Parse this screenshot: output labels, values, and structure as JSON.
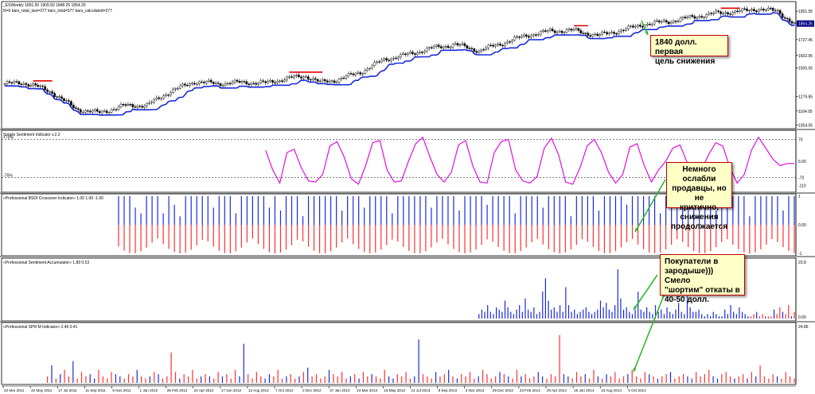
{
  "chart_data": [
    {
      "type": "candlestick",
      "title": "_ESWeekly  1891.50 1905.50 1848.25 1854.25",
      "subtitle": "N=0 bars_total_last=377 bars_total=377 bars_calculated=377",
      "y_ticks": [
        "1951.55",
        "1854.25",
        "1727.45",
        "1602.95",
        "1505.05",
        "1279.85",
        "1164.05",
        "1054.05"
      ],
      "y_min": 1050,
      "y_max": 1990,
      "price_label": "1854.25",
      "colors": {
        "line": "#1a2adc",
        "line_resist": "#e00000",
        "bull": "#ffffff",
        "bear": "#000000",
        "accent_label": "#000080"
      },
      "anchors": [
        [
          0,
          1380
        ],
        [
          8,
          1385
        ],
        [
          12,
          1370
        ],
        [
          16,
          1340
        ],
        [
          20,
          1310
        ],
        [
          24,
          1260
        ],
        [
          30,
          1180
        ],
        [
          40,
          1150
        ],
        [
          50,
          1205
        ],
        [
          60,
          1210
        ],
        [
          70,
          1320
        ],
        [
          80,
          1395
        ],
        [
          90,
          1380
        ],
        [
          100,
          1390
        ],
        [
          110,
          1385
        ],
        [
          120,
          1425
        ],
        [
          127,
          1440
        ],
        [
          133,
          1390
        ],
        [
          140,
          1410
        ],
        [
          150,
          1470
        ],
        [
          160,
          1570
        ],
        [
          170,
          1610
        ],
        [
          180,
          1660
        ],
        [
          190,
          1690
        ],
        [
          200,
          1640
        ],
        [
          210,
          1700
        ],
        [
          220,
          1760
        ],
        [
          230,
          1795
        ],
        [
          240,
          1800
        ],
        [
          250,
          1760
        ],
        [
          260,
          1800
        ],
        [
          270,
          1850
        ],
        [
          280,
          1870
        ],
        [
          290,
          1905
        ],
        [
          300,
          1935
        ],
        [
          310,
          1950
        ],
        [
          318,
          1970
        ],
        [
          326,
          1950
        ],
        [
          333,
          1850
        ]
      ],
      "resist_bars": [
        [
          12,
          20
        ],
        [
          120,
          134
        ],
        [
          240,
          246
        ],
        [
          302,
          310
        ]
      ],
      "points": 334
    },
    {
      "type": "line",
      "title": "Simple Sentiment Indicator v.2.2",
      "y_ticks": [
        "70",
        "6.00",
        "-70",
        "-110"
      ],
      "level_labels": [
        "+75%",
        "-75%"
      ],
      "colors": {
        "line": "#e010e0",
        "level": "#000000"
      },
      "x_start": 110,
      "x_end": 333,
      "series": [
        {
          "values": [
            50,
            -40,
            -100,
            40,
            55,
            -30,
            -90,
            -95,
            -60,
            70,
            90,
            20,
            -80,
            -105,
            -20,
            85,
            95,
            -40,
            -95,
            -90,
            0,
            80,
            110,
            20,
            -60,
            -95,
            -50,
            75,
            95,
            -20,
            -95,
            -100,
            40,
            90,
            100,
            -40,
            -90,
            -100,
            -70,
            60,
            105,
            30,
            -95,
            -105,
            -30,
            70,
            100,
            40,
            -50,
            -100,
            -60,
            65,
            80,
            -20,
            -95,
            -40,
            0,
            60,
            75,
            -5,
            -100,
            -40,
            30,
            85,
            70,
            -30,
            -100,
            -60,
            50,
            110,
            60,
            10,
            -20,
            -10,
            -10
          ]
        }
      ]
    },
    {
      "type": "bar",
      "title": "«Professional BSDI Crossover Indicator» 1.00 1.00 -1.00",
      "y_ticks": [
        "1",
        "0.00",
        "-1"
      ],
      "colors": {
        "pos": "#1a2adc",
        "neg": "#ff3030"
      },
      "x_start": 0,
      "x_end": 333,
      "series": [
        {
          "values": [
            1,
            1,
            1,
            0.6,
            0.4,
            1,
            1,
            1,
            0.4,
            1,
            0.7,
            0.3,
            1,
            1,
            1,
            1,
            1,
            0.6,
            1,
            1,
            1,
            0.4,
            1,
            1,
            1,
            1,
            1,
            0.6,
            1,
            0.5,
            1,
            1,
            1,
            0.3,
            1,
            1,
            1,
            1,
            1,
            1,
            0.5,
            1,
            1,
            1,
            0.6,
            1,
            1,
            1,
            1,
            0.4,
            1,
            1,
            1,
            1,
            1,
            1,
            0.6,
            1,
            1,
            1,
            1,
            0.5,
            1,
            1,
            1,
            1,
            0.7,
            1,
            1,
            1,
            1,
            0.4,
            1,
            1,
            1,
            1,
            0.6,
            1,
            1,
            1,
            1,
            0.3,
            1,
            1,
            1,
            1,
            0.5,
            1,
            1,
            1,
            1,
            0.7,
            1,
            1,
            1,
            1,
            1,
            0.4,
            1,
            1,
            1,
            1,
            1,
            0.6,
            1,
            1,
            1,
            0.5,
            1,
            1,
            1,
            1,
            1,
            0.3,
            1,
            1,
            1,
            1,
            1,
            0.5,
            1,
            1
          ]
        }
      ]
    },
    {
      "type": "bar",
      "title": "«Professional Sentiment Accumulator» 1.89 0.53",
      "y_ticks": [
        "23.8",
        "0.00"
      ],
      "colors": {
        "pos": "#1a2adc",
        "neg": "#ff3030"
      },
      "x_start": 200,
      "x_end": 333,
      "series": [
        {
          "values": [
            2,
            4,
            3,
            6,
            3,
            2,
            5,
            4,
            3,
            8,
            5,
            3,
            2,
            4,
            6,
            3,
            9,
            4,
            3,
            5,
            2,
            3,
            12,
            18,
            8,
            4,
            5,
            3,
            6,
            3,
            14,
            6,
            3,
            4,
            2,
            3,
            4,
            5,
            3,
            2,
            3,
            4,
            8,
            5,
            7,
            4,
            3,
            6,
            22,
            9,
            4,
            5,
            3,
            2,
            4,
            12,
            4,
            3,
            5,
            3,
            2,
            6,
            3,
            4,
            2,
            5,
            3,
            2,
            4,
            7,
            3,
            2,
            10,
            5,
            3,
            3,
            4,
            2,
            1,
            2,
            1,
            3,
            2,
            1,
            1,
            4,
            2,
            6,
            3,
            2,
            5,
            3,
            2,
            1,
            1,
            2,
            3,
            1,
            2,
            1,
            1,
            1,
            4,
            2,
            5,
            3,
            2,
            6,
            1,
            3
          ]
        }
      ]
    },
    {
      "type": "bar",
      "title": "«Professional SPR-M Indicator» 2.46 0.41",
      "y_ticks": [
        "24.86"
      ],
      "colors": {
        "pos": "#1a2adc",
        "neg": "#ff3030"
      },
      "x_start": 18,
      "x_end": 333,
      "x_ticks": [
        "22 Mar 2011",
        "22 May 2011",
        "17 Jul 2011",
        "11 Sep 2011",
        "6 Nov 2011",
        "1 Jan 2012",
        "26 Feb 2012",
        "22 Apr 2012",
        "17 Jun 2012",
        "12 Aug 2012",
        "7 Oct 2012",
        "2 Dec 2012",
        "27 Jan 2013",
        "24 Mar 2013",
        "19 May 2013",
        "14 Jul 2013",
        "8 Sep 2013",
        "3 Nov 2013",
        "29 Dec 2013",
        "23 Feb 2014",
        "20 Apr 2014",
        "15 Jun 2014",
        "10 Aug 2014",
        "5 Oct 2014"
      ],
      "series": [
        {
          "values": [
            3,
            8,
            2,
            4,
            6,
            3,
            10,
            2,
            5,
            3,
            4,
            2,
            6,
            3,
            2,
            5,
            4,
            3,
            2,
            4,
            3,
            6,
            3,
            2,
            3,
            5,
            4,
            2,
            3,
            14,
            5,
            2,
            4,
            3,
            6,
            2,
            3,
            4,
            3,
            2,
            5,
            3,
            4,
            2,
            6,
            3,
            18,
            4,
            2,
            5,
            3,
            2,
            4,
            3,
            6,
            2,
            3,
            4,
            2,
            3,
            5,
            7,
            3,
            4,
            2,
            3,
            6,
            4,
            3,
            5,
            2,
            3,
            4,
            2,
            5,
            3,
            4,
            3,
            2,
            6,
            3,
            2,
            4,
            3,
            5,
            2,
            3,
            20,
            4,
            3,
            2,
            5,
            3,
            4,
            6,
            3,
            2,
            4,
            3,
            5,
            2,
            3,
            6,
            4,
            2,
            3,
            5,
            4,
            3,
            2,
            6,
            3,
            4,
            2,
            3,
            5,
            3,
            2,
            4,
            3,
            22,
            4,
            3,
            2,
            5,
            3,
            4,
            2,
            6,
            3,
            2,
            4,
            3,
            5,
            2,
            3,
            4,
            6,
            3,
            2,
            5,
            4,
            3,
            2,
            3,
            4,
            5,
            2,
            3,
            4,
            3,
            2,
            5,
            3,
            4,
            6,
            3,
            2,
            4,
            5,
            3,
            2,
            3,
            4,
            2,
            5,
            3,
            8,
            3,
            2,
            4,
            3,
            2,
            5,
            3,
            2
          ]
        }
      ]
    }
  ],
  "annotations": {
    "note1": "1840 долл. первая\nцель снижения",
    "note2": "Немного ослабли\nпродавцы, но не\nкритично,\nснижения\nпродолжается",
    "note3": "Покупатели  в\nзародыше))) Смело\n\"шортим\" откаты в\n40-50 долл."
  }
}
